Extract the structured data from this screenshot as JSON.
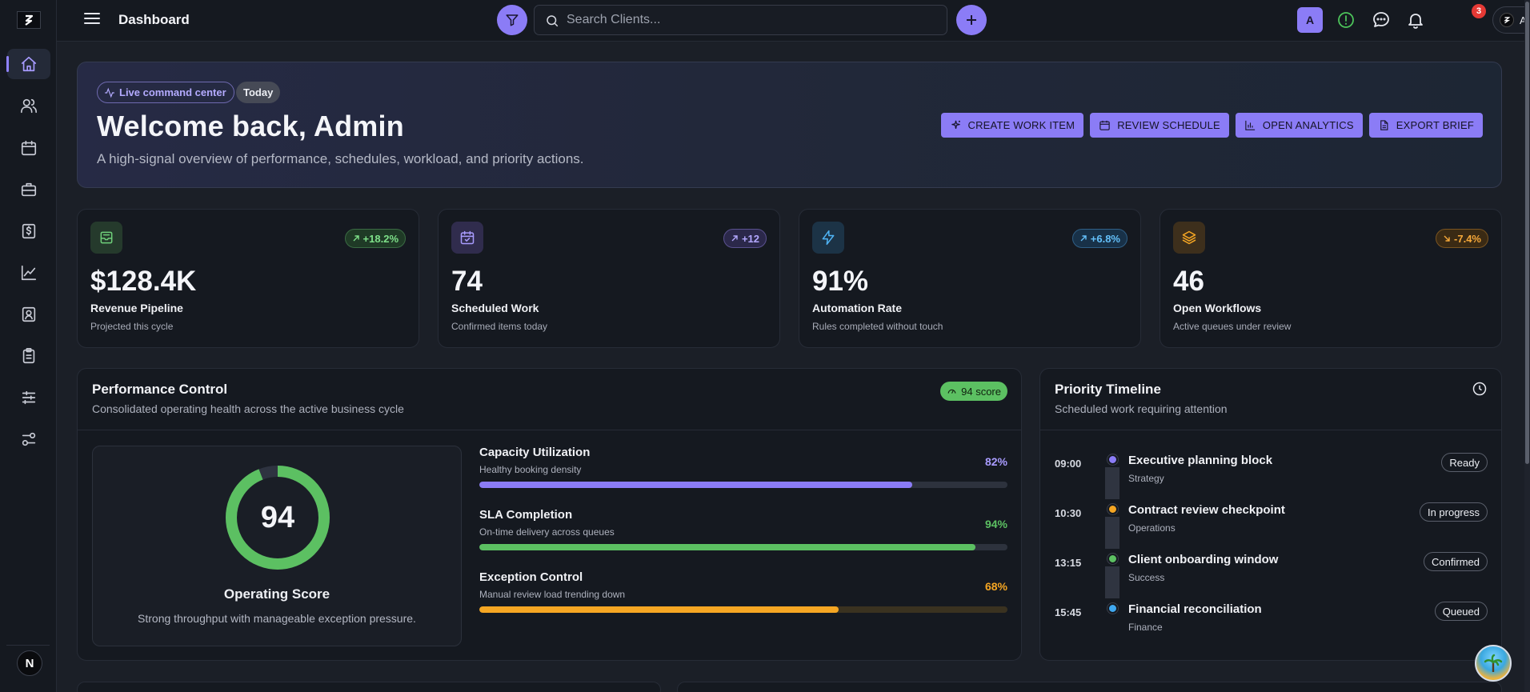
{
  "app": {
    "title": "Dashboard",
    "logo": "S"
  },
  "colors": {
    "accent": "#8b7cf6",
    "green": "#5cc062",
    "orange": "#f5a623",
    "blue": "#3fa8f0",
    "purple": "#8b7cf6"
  },
  "sidebar": {
    "items": [
      {
        "name": "home",
        "icon": "home-icon",
        "active": true
      },
      {
        "name": "clients",
        "icon": "users-icon",
        "active": false
      },
      {
        "name": "calendar",
        "icon": "calendar-icon",
        "active": false
      },
      {
        "name": "jobs",
        "icon": "briefcase-icon",
        "active": false
      },
      {
        "name": "invoices",
        "icon": "dollar-doc-icon",
        "active": false
      },
      {
        "name": "analytics",
        "icon": "chart-line-icon",
        "active": false
      },
      {
        "name": "contacts",
        "icon": "contact-card-icon",
        "active": false
      },
      {
        "name": "tasks",
        "icon": "clipboard-icon",
        "active": false
      },
      {
        "name": "controls",
        "icon": "sliders-icon",
        "active": false
      },
      {
        "name": "settings",
        "icon": "settings-toggle-icon",
        "active": false
      }
    ],
    "user_initial": "N"
  },
  "topbar": {
    "search_placeholder": "Search Clients...",
    "user_badge": "A",
    "notifications_count": "3",
    "admin_label": "Admin"
  },
  "hero": {
    "live_label": "Live command center",
    "today_label": "Today",
    "heading": "Welcome back, Admin",
    "subtitle": "A high-signal overview of performance, schedules, workload, and priority actions.",
    "actions": [
      {
        "label": "CREATE WORK ITEM",
        "icon": "sparkle-icon"
      },
      {
        "label": "REVIEW SCHEDULE",
        "icon": "calendar-icon"
      },
      {
        "label": "OPEN ANALYTICS",
        "icon": "bar-chart-icon"
      },
      {
        "label": "EXPORT BRIEF",
        "icon": "document-icon"
      }
    ]
  },
  "stats": [
    {
      "value": "$128.4K",
      "label": "Revenue Pipeline",
      "sub": "Projected this cycle",
      "delta": "+18.2%",
      "icon": "inbox-icon",
      "tone": "green"
    },
    {
      "value": "74",
      "label": "Scheduled Work",
      "sub": "Confirmed items today",
      "delta": "+12",
      "icon": "calendar-check-icon",
      "tone": "purple"
    },
    {
      "value": "91%",
      "label": "Automation Rate",
      "sub": "Rules completed without touch",
      "delta": "+6.8%",
      "icon": "lightning-icon",
      "tone": "blue"
    },
    {
      "value": "46",
      "label": "Open Workflows",
      "sub": "Active queues under review",
      "delta": "-7.4%",
      "icon": "layers-icon",
      "tone": "orange"
    }
  ],
  "performance": {
    "title": "Performance Control",
    "subtitle": "Consolidated operating health across the active business cycle",
    "score_pill": "94 score",
    "gauge": {
      "value": "94",
      "fraction": 0.94,
      "title": "Operating Score",
      "subtitle": "Strong throughput with manageable exception pressure."
    },
    "metrics": [
      {
        "title": "Capacity Utilization",
        "sub": "Healthy booking density",
        "pct": "82%",
        "fraction": 0.82,
        "tone": "purple"
      },
      {
        "title": "SLA Completion",
        "sub": "On-time delivery across queues",
        "pct": "94%",
        "fraction": 0.94,
        "tone": "green"
      },
      {
        "title": "Exception Control",
        "sub": "Manual review load trending down",
        "pct": "68%",
        "fraction": 0.68,
        "tone": "orange"
      }
    ]
  },
  "timeline": {
    "title": "Priority Timeline",
    "subtitle": "Scheduled work requiring attention",
    "items": [
      {
        "time": "09:00",
        "title": "Executive planning block",
        "category": "Strategy",
        "status": "Ready",
        "tone": "purple"
      },
      {
        "time": "10:30",
        "title": "Contract review checkpoint",
        "category": "Operations",
        "status": "In progress",
        "tone": "orange"
      },
      {
        "time": "13:15",
        "title": "Client onboarding window",
        "category": "Success",
        "status": "Confirmed",
        "tone": "green"
      },
      {
        "time": "15:45",
        "title": "Financial reconciliation",
        "category": "Finance",
        "status": "Queued",
        "tone": "blue"
      }
    ]
  }
}
